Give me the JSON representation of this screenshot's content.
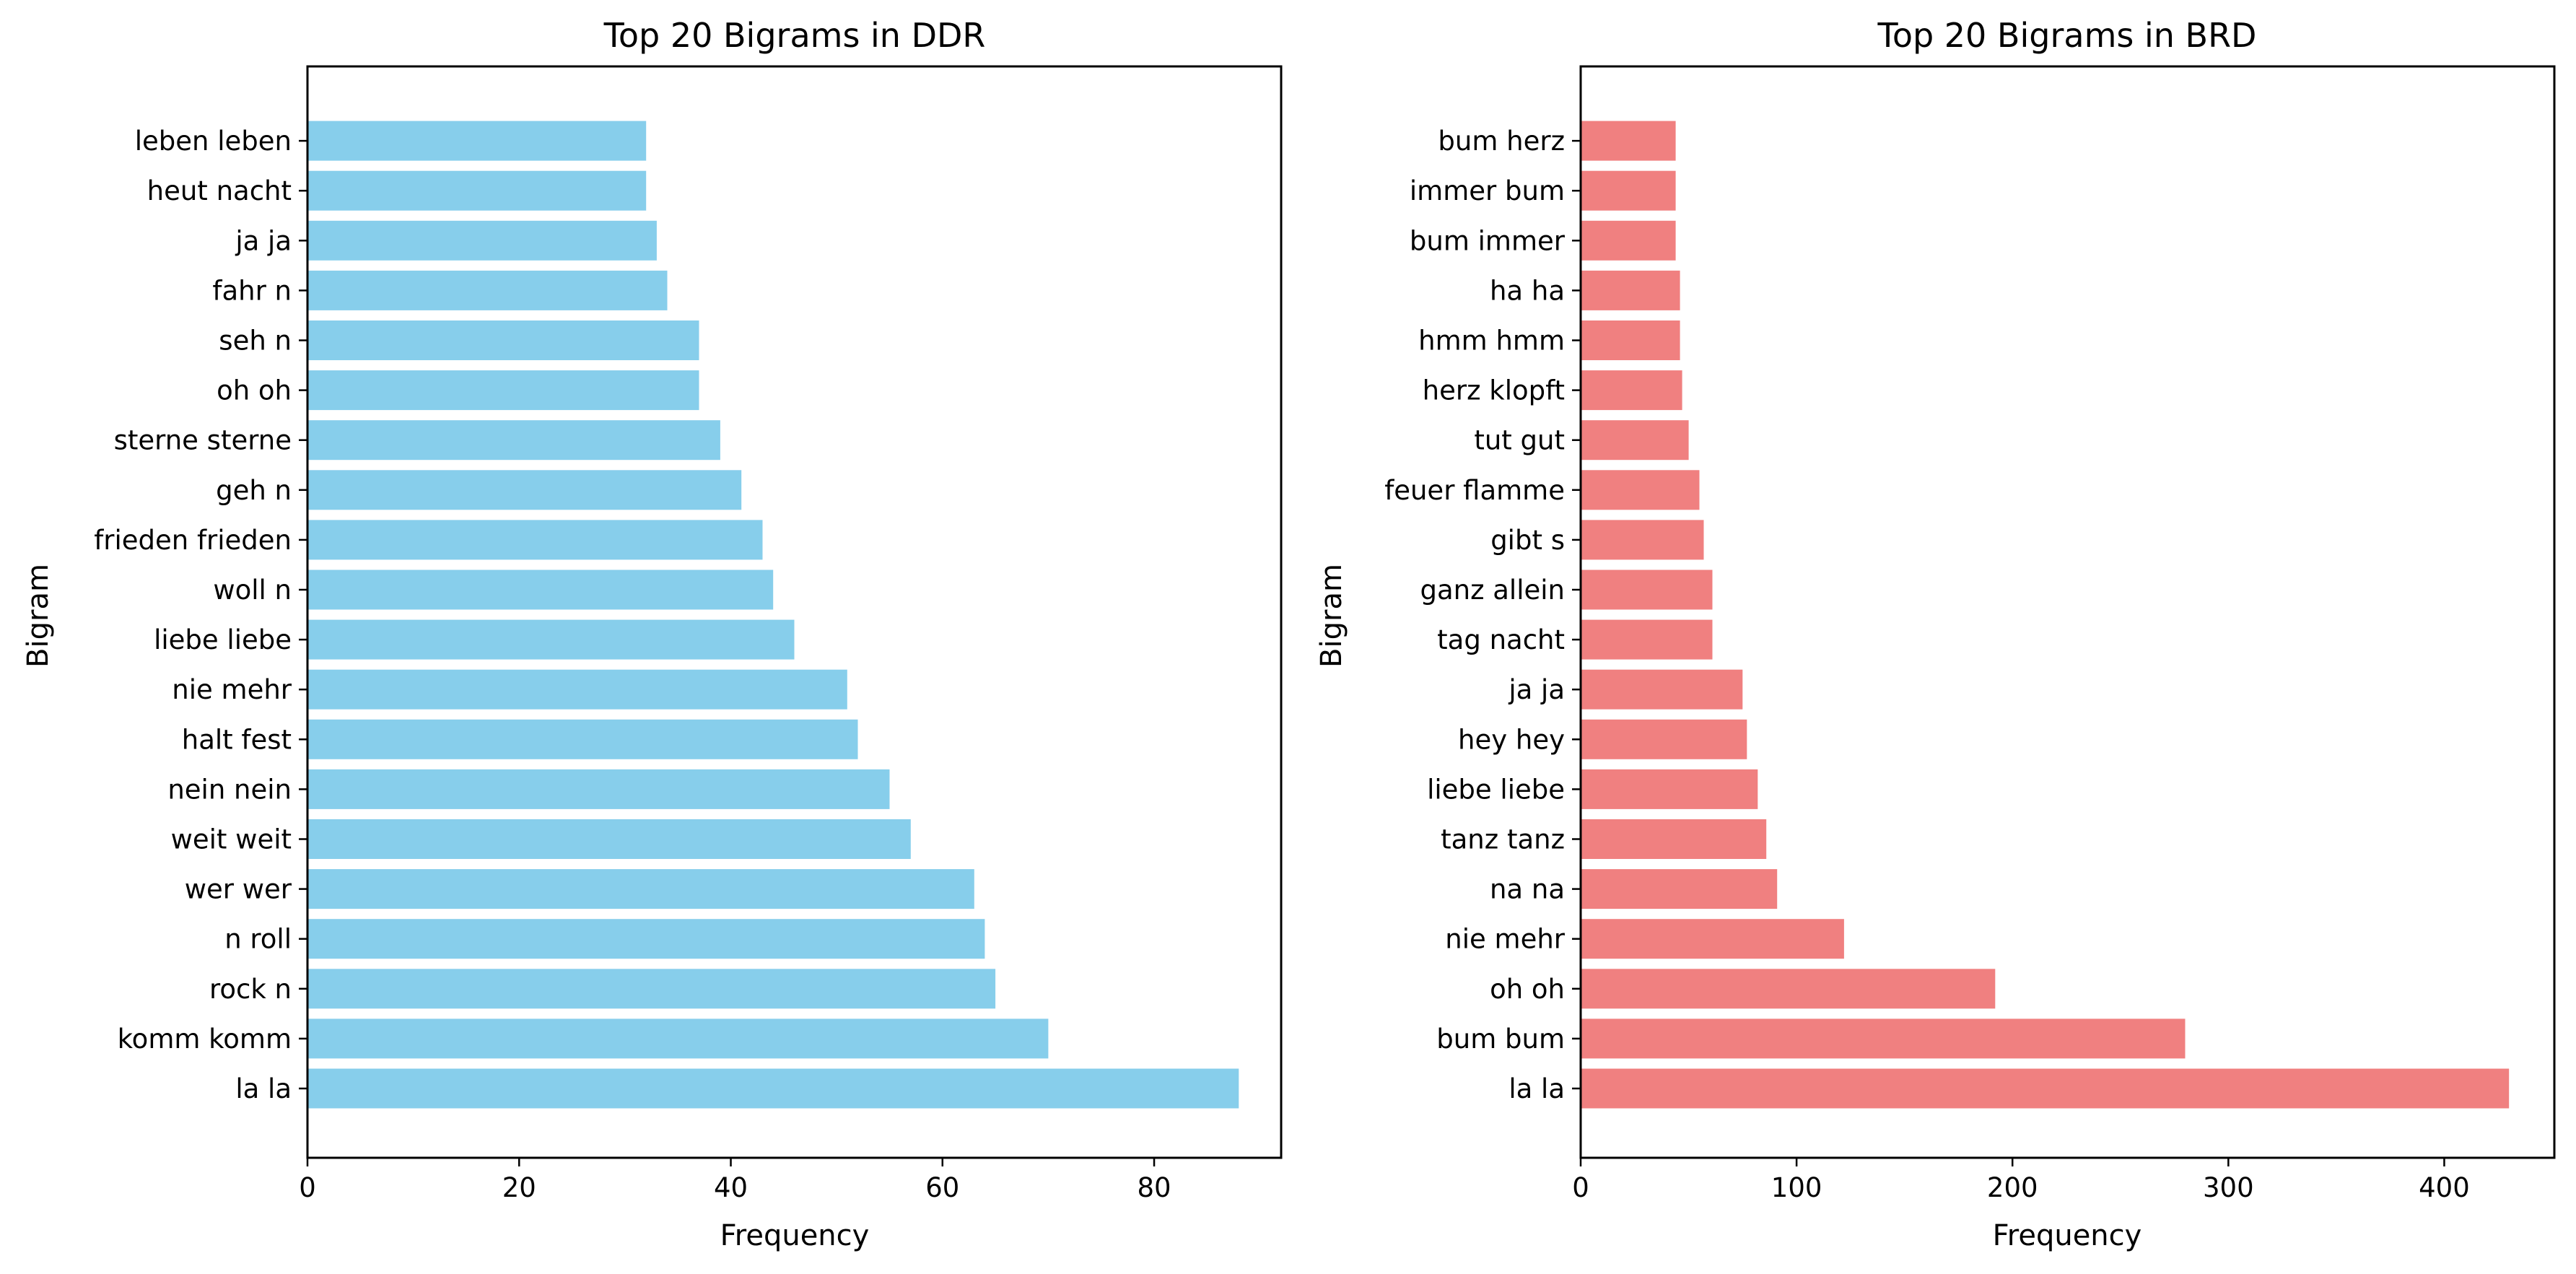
{
  "chart_data": [
    {
      "type": "bar",
      "orientation": "horizontal",
      "title": "Top 20 Bigrams in DDR",
      "xlabel": "Frequency",
      "ylabel": "Bigram",
      "xlim": [
        0,
        92
      ],
      "xticks": [
        0,
        20,
        40,
        60,
        80
      ],
      "grid": false,
      "legend": "none",
      "color": "#87ceeb",
      "categories": [
        "la la",
        "komm komm",
        "rock n",
        "n roll",
        "wer wer",
        "weit weit",
        "nein nein",
        "halt fest",
        "nie mehr",
        "liebe liebe",
        "woll n",
        "frieden frieden",
        "geh n",
        "sterne sterne",
        "oh oh",
        "seh n",
        "fahr n",
        "ja ja",
        "heut nacht",
        "leben leben"
      ],
      "values": [
        88,
        70,
        65,
        64,
        63,
        57,
        55,
        52,
        51,
        46,
        44,
        43,
        41,
        39,
        37,
        37,
        34,
        33,
        32,
        32
      ]
    },
    {
      "type": "bar",
      "orientation": "horizontal",
      "title": "Top 20 Bigrams in BRD",
      "xlabel": "Frequency",
      "ylabel": "Bigram",
      "xlim": [
        0,
        451
      ],
      "xticks": [
        0,
        100,
        200,
        300,
        400
      ],
      "grid": false,
      "legend": "none",
      "color": "#f08080",
      "categories": [
        "la la",
        "bum bum",
        "oh oh",
        "nie mehr",
        "na na",
        "tanz tanz",
        "liebe liebe",
        "hey hey",
        "ja ja",
        "tag nacht",
        "ganz allein",
        "gibt s",
        "feuer flamme",
        "tut gut",
        "herz klopft",
        "hmm hmm",
        "ha ha",
        "bum immer",
        "immer bum",
        "bum herz"
      ],
      "values": [
        430,
        280,
        192,
        122,
        91,
        86,
        82,
        77,
        75,
        61,
        61,
        57,
        55,
        50,
        47,
        46,
        46,
        44,
        44,
        44
      ]
    }
  ]
}
